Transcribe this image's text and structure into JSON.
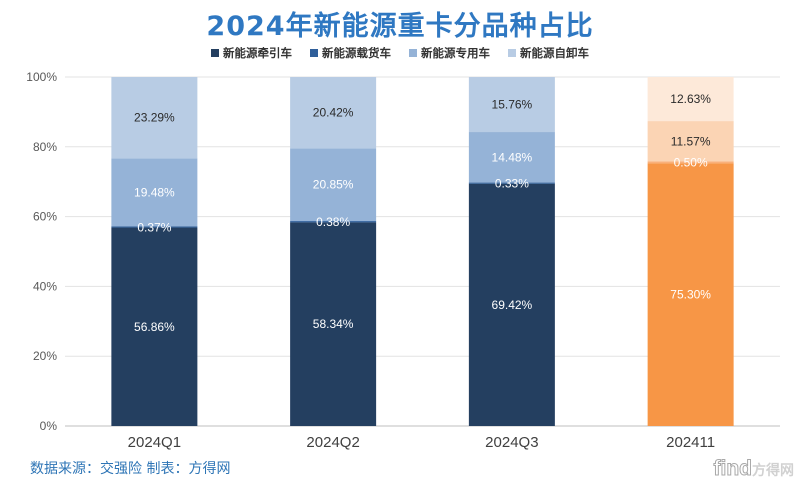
{
  "chart_data": {
    "type": "bar",
    "stacked": true,
    "title": "2024年新能源重卡分品种占比",
    "categories": [
      "2024Q1",
      "2024Q2",
      "2024Q3",
      "202411"
    ],
    "series": [
      {
        "name": "新能源牵引车",
        "values": [
          56.86,
          58.34,
          69.42,
          75.3
        ],
        "labels": [
          "56.86%",
          "58.34%",
          "69.42%",
          "75.30%"
        ]
      },
      {
        "name": "新能源载货车",
        "values": [
          0.37,
          0.38,
          0.33,
          0.5
        ],
        "labels": [
          "0.37%",
          "0.38%",
          "0.33%",
          "0.50%"
        ]
      },
      {
        "name": "新能源专用车",
        "values": [
          19.48,
          20.85,
          14.48,
          11.57
        ],
        "labels": [
          "19.48%",
          "20.85%",
          "14.48%",
          "11.57%"
        ]
      },
      {
        "name": "新能源自卸车",
        "values": [
          23.29,
          20.42,
          15.76,
          12.63
        ],
        "labels": [
          "23.29%",
          "20.42%",
          "15.76%",
          "12.63%"
        ]
      }
    ],
    "yticks": [
      "0%",
      "20%",
      "40%",
      "60%",
      "80%",
      "100%"
    ],
    "ylim": [
      0,
      100
    ],
    "legend_position": "top",
    "grid": true,
    "colors": [
      "#243f60",
      "#2f5f9a",
      "#95b3d7",
      "#b8cce4"
    ],
    "highlight_colors": [
      "#f79646",
      "#fab07a",
      "#fbd4b4",
      "#fde9d9"
    ]
  },
  "footer": {
    "source": "数据来源：交强险 制表：方得网",
    "watermark_latin": "find",
    "watermark_cn": "方得网"
  }
}
